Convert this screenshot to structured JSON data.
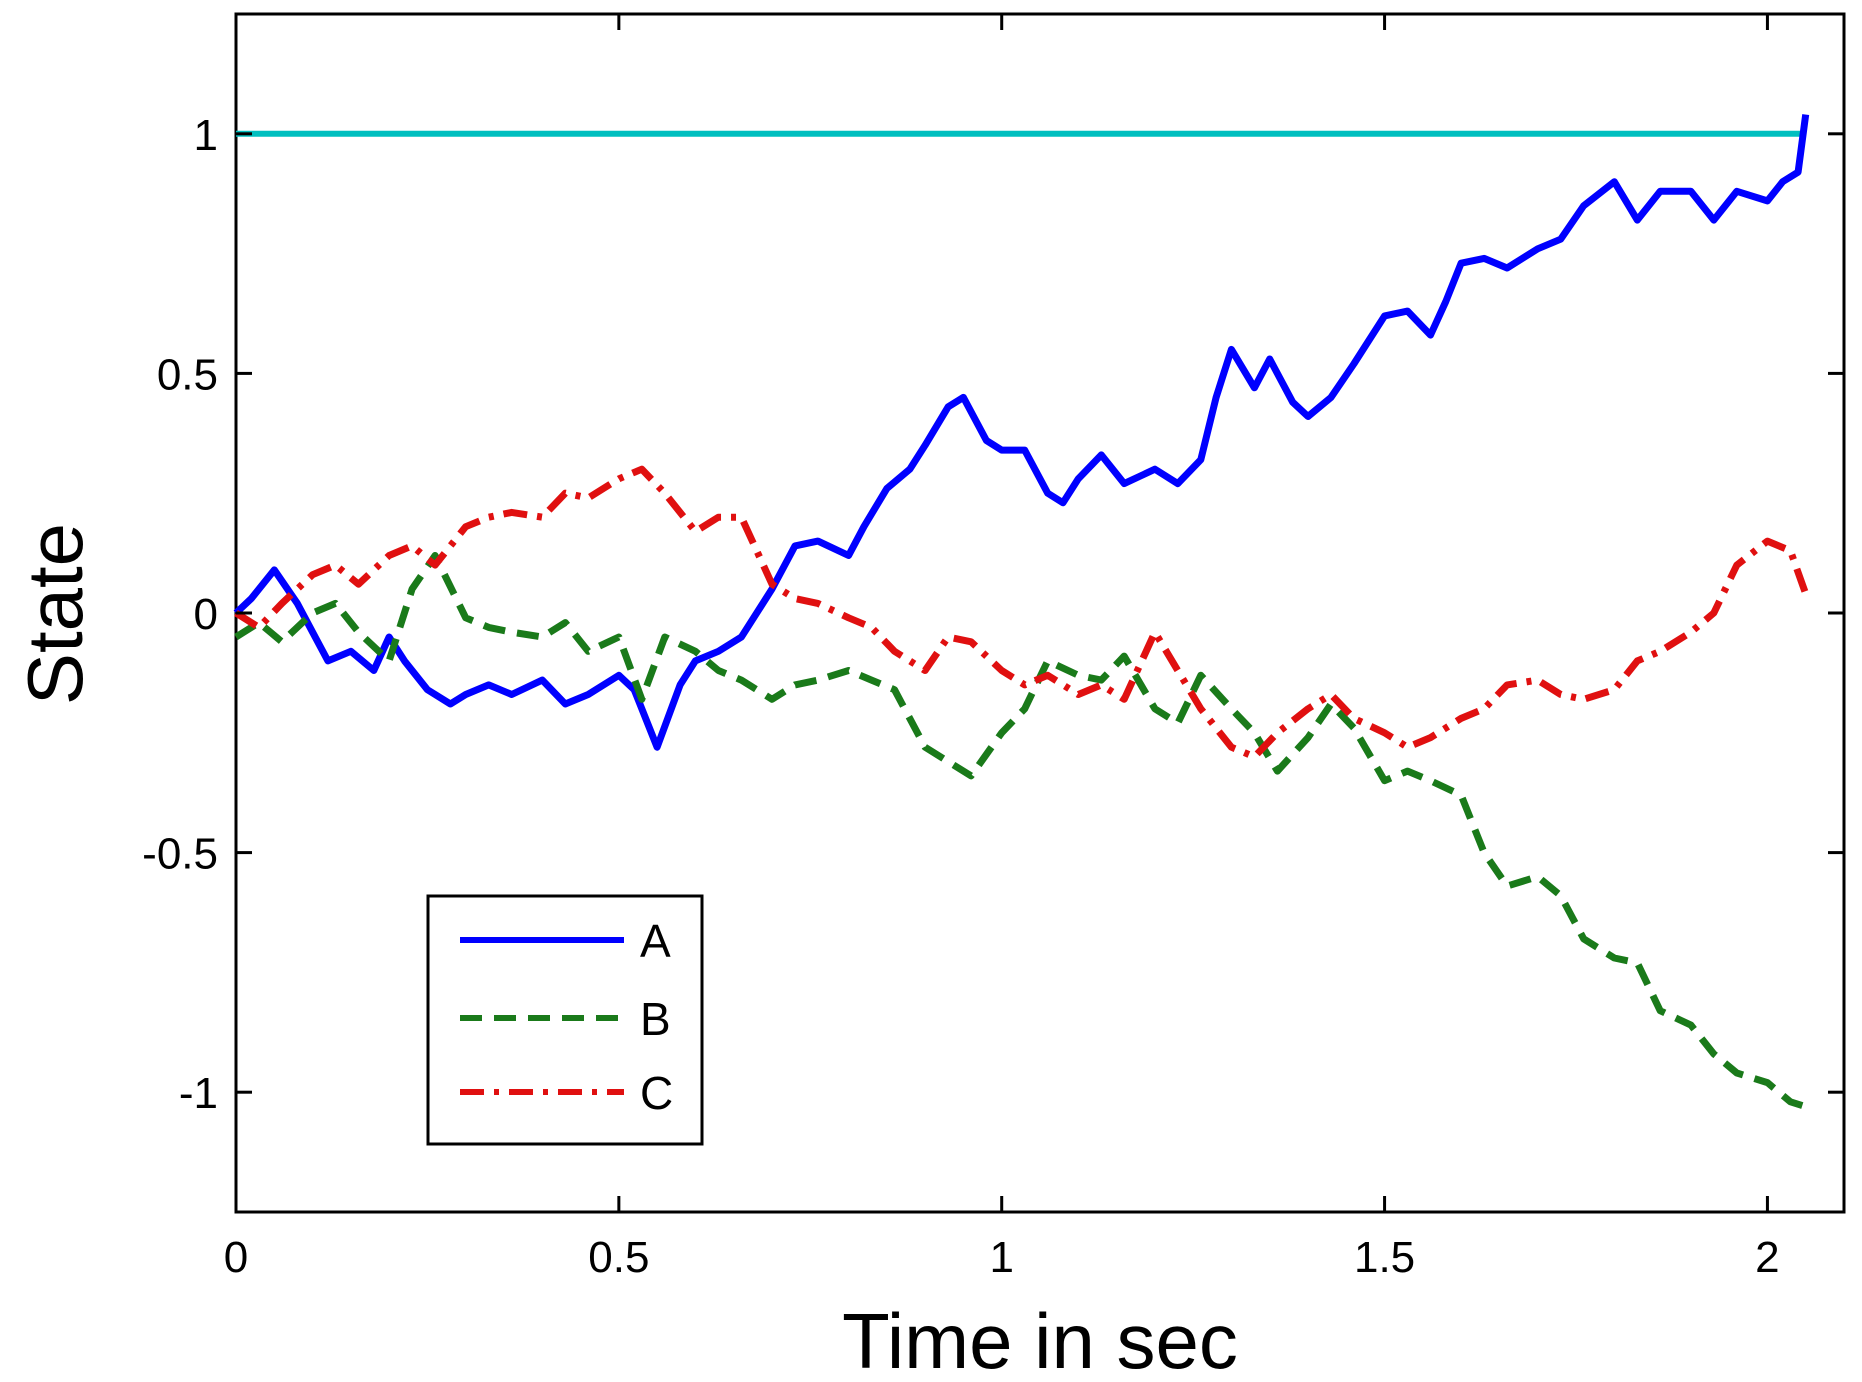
{
  "chart_data": {
    "type": "line",
    "title": "",
    "xlabel": "Time in sec",
    "ylabel": "State",
    "xlim": [
      0,
      2.1
    ],
    "ylim": [
      -1.25,
      1.25
    ],
    "xticks": [
      0,
      0.5,
      1,
      1.5,
      2
    ],
    "xtick_labels": [
      "0",
      "0.5",
      "1",
      "1.5",
      "2"
    ],
    "yticks": [
      -1,
      -0.5,
      0,
      0.5,
      1
    ],
    "ytick_labels": [
      "-1",
      "-0.5",
      "0",
      "0.5",
      "1"
    ],
    "grid": false,
    "legend_position": "bottom-left",
    "reference_line": {
      "y": 1,
      "color": "#00bfbf"
    },
    "series": [
      {
        "name": "A",
        "color": "#0000ff",
        "dash": "solid",
        "x": [
          0,
          0.02,
          0.05,
          0.08,
          0.1,
          0.12,
          0.15,
          0.18,
          0.2,
          0.22,
          0.25,
          0.28,
          0.3,
          0.33,
          0.36,
          0.4,
          0.43,
          0.46,
          0.5,
          0.52,
          0.55,
          0.58,
          0.6,
          0.63,
          0.66,
          0.7,
          0.73,
          0.76,
          0.8,
          0.82,
          0.85,
          0.88,
          0.9,
          0.93,
          0.95,
          0.98,
          1.0,
          1.03,
          1.06,
          1.08,
          1.1,
          1.13,
          1.16,
          1.2,
          1.23,
          1.26,
          1.28,
          1.3,
          1.33,
          1.35,
          1.38,
          1.4,
          1.43,
          1.46,
          1.5,
          1.53,
          1.56,
          1.58,
          1.6,
          1.63,
          1.66,
          1.7,
          1.73,
          1.76,
          1.8,
          1.83,
          1.86,
          1.9,
          1.93,
          1.96,
          2.0,
          2.02,
          2.04,
          2.05
        ],
        "y": [
          0.0,
          0.03,
          0.09,
          0.02,
          -0.04,
          -0.1,
          -0.08,
          -0.12,
          -0.05,
          -0.1,
          -0.16,
          -0.19,
          -0.17,
          -0.15,
          -0.17,
          -0.14,
          -0.19,
          -0.17,
          -0.13,
          -0.16,
          -0.28,
          -0.15,
          -0.1,
          -0.08,
          -0.05,
          0.05,
          0.14,
          0.15,
          0.12,
          0.18,
          0.26,
          0.3,
          0.35,
          0.43,
          0.45,
          0.36,
          0.34,
          0.34,
          0.25,
          0.23,
          0.28,
          0.33,
          0.27,
          0.3,
          0.27,
          0.32,
          0.45,
          0.55,
          0.47,
          0.53,
          0.44,
          0.41,
          0.45,
          0.52,
          0.62,
          0.63,
          0.58,
          0.65,
          0.73,
          0.74,
          0.72,
          0.76,
          0.78,
          0.85,
          0.9,
          0.82,
          0.88,
          0.88,
          0.82,
          0.88,
          0.86,
          0.9,
          0.92,
          1.04
        ]
      },
      {
        "name": "B",
        "color": "#1a7a1a",
        "dash": "dashed",
        "x": [
          0,
          0.03,
          0.06,
          0.1,
          0.13,
          0.16,
          0.2,
          0.23,
          0.26,
          0.3,
          0.33,
          0.36,
          0.4,
          0.43,
          0.46,
          0.5,
          0.53,
          0.56,
          0.6,
          0.63,
          0.66,
          0.7,
          0.73,
          0.76,
          0.8,
          0.83,
          0.86,
          0.9,
          0.93,
          0.96,
          1.0,
          1.03,
          1.06,
          1.1,
          1.13,
          1.16,
          1.2,
          1.23,
          1.26,
          1.3,
          1.33,
          1.36,
          1.4,
          1.43,
          1.46,
          1.5,
          1.53,
          1.56,
          1.6,
          1.63,
          1.66,
          1.7,
          1.73,
          1.76,
          1.8,
          1.83,
          1.86,
          1.9,
          1.93,
          1.96,
          2.0,
          2.03,
          2.05
        ],
        "y": [
          -0.05,
          -0.02,
          -0.06,
          0.0,
          0.02,
          -0.04,
          -0.1,
          0.05,
          0.12,
          -0.01,
          -0.03,
          -0.04,
          -0.05,
          -0.02,
          -0.08,
          -0.05,
          -0.18,
          -0.05,
          -0.08,
          -0.12,
          -0.14,
          -0.18,
          -0.15,
          -0.14,
          -0.12,
          -0.14,
          -0.16,
          -0.28,
          -0.31,
          -0.34,
          -0.25,
          -0.2,
          -0.1,
          -0.13,
          -0.14,
          -0.09,
          -0.2,
          -0.23,
          -0.13,
          -0.2,
          -0.25,
          -0.33,
          -0.26,
          -0.19,
          -0.24,
          -0.35,
          -0.33,
          -0.35,
          -0.38,
          -0.5,
          -0.57,
          -0.55,
          -0.59,
          -0.68,
          -0.72,
          -0.73,
          -0.83,
          -0.86,
          -0.92,
          -0.96,
          -0.98,
          -1.02,
          -1.03
        ]
      },
      {
        "name": "C",
        "color": "#e01010",
        "dash": "dashdot",
        "x": [
          0,
          0.03,
          0.06,
          0.1,
          0.13,
          0.16,
          0.2,
          0.23,
          0.26,
          0.3,
          0.33,
          0.36,
          0.4,
          0.43,
          0.46,
          0.5,
          0.53,
          0.56,
          0.6,
          0.63,
          0.66,
          0.7,
          0.73,
          0.76,
          0.8,
          0.83,
          0.86,
          0.9,
          0.93,
          0.96,
          1.0,
          1.03,
          1.06,
          1.1,
          1.13,
          1.16,
          1.2,
          1.23,
          1.26,
          1.3,
          1.33,
          1.36,
          1.4,
          1.43,
          1.46,
          1.5,
          1.53,
          1.56,
          1.6,
          1.63,
          1.66,
          1.7,
          1.73,
          1.76,
          1.8,
          1.83,
          1.86,
          1.9,
          1.93,
          1.96,
          2.0,
          2.03,
          2.05
        ],
        "y": [
          0.0,
          -0.03,
          0.02,
          0.08,
          0.1,
          0.06,
          0.12,
          0.14,
          0.1,
          0.18,
          0.2,
          0.21,
          0.2,
          0.25,
          0.24,
          0.28,
          0.3,
          0.25,
          0.17,
          0.2,
          0.2,
          0.06,
          0.03,
          0.02,
          -0.01,
          -0.03,
          -0.08,
          -0.12,
          -0.05,
          -0.06,
          -0.12,
          -0.15,
          -0.13,
          -0.17,
          -0.15,
          -0.18,
          -0.04,
          -0.12,
          -0.2,
          -0.28,
          -0.3,
          -0.25,
          -0.2,
          -0.17,
          -0.22,
          -0.25,
          -0.28,
          -0.26,
          -0.22,
          -0.2,
          -0.15,
          -0.14,
          -0.17,
          -0.18,
          -0.16,
          -0.1,
          -0.08,
          -0.04,
          0.0,
          0.1,
          0.15,
          0.13,
          0.04
        ]
      }
    ]
  }
}
